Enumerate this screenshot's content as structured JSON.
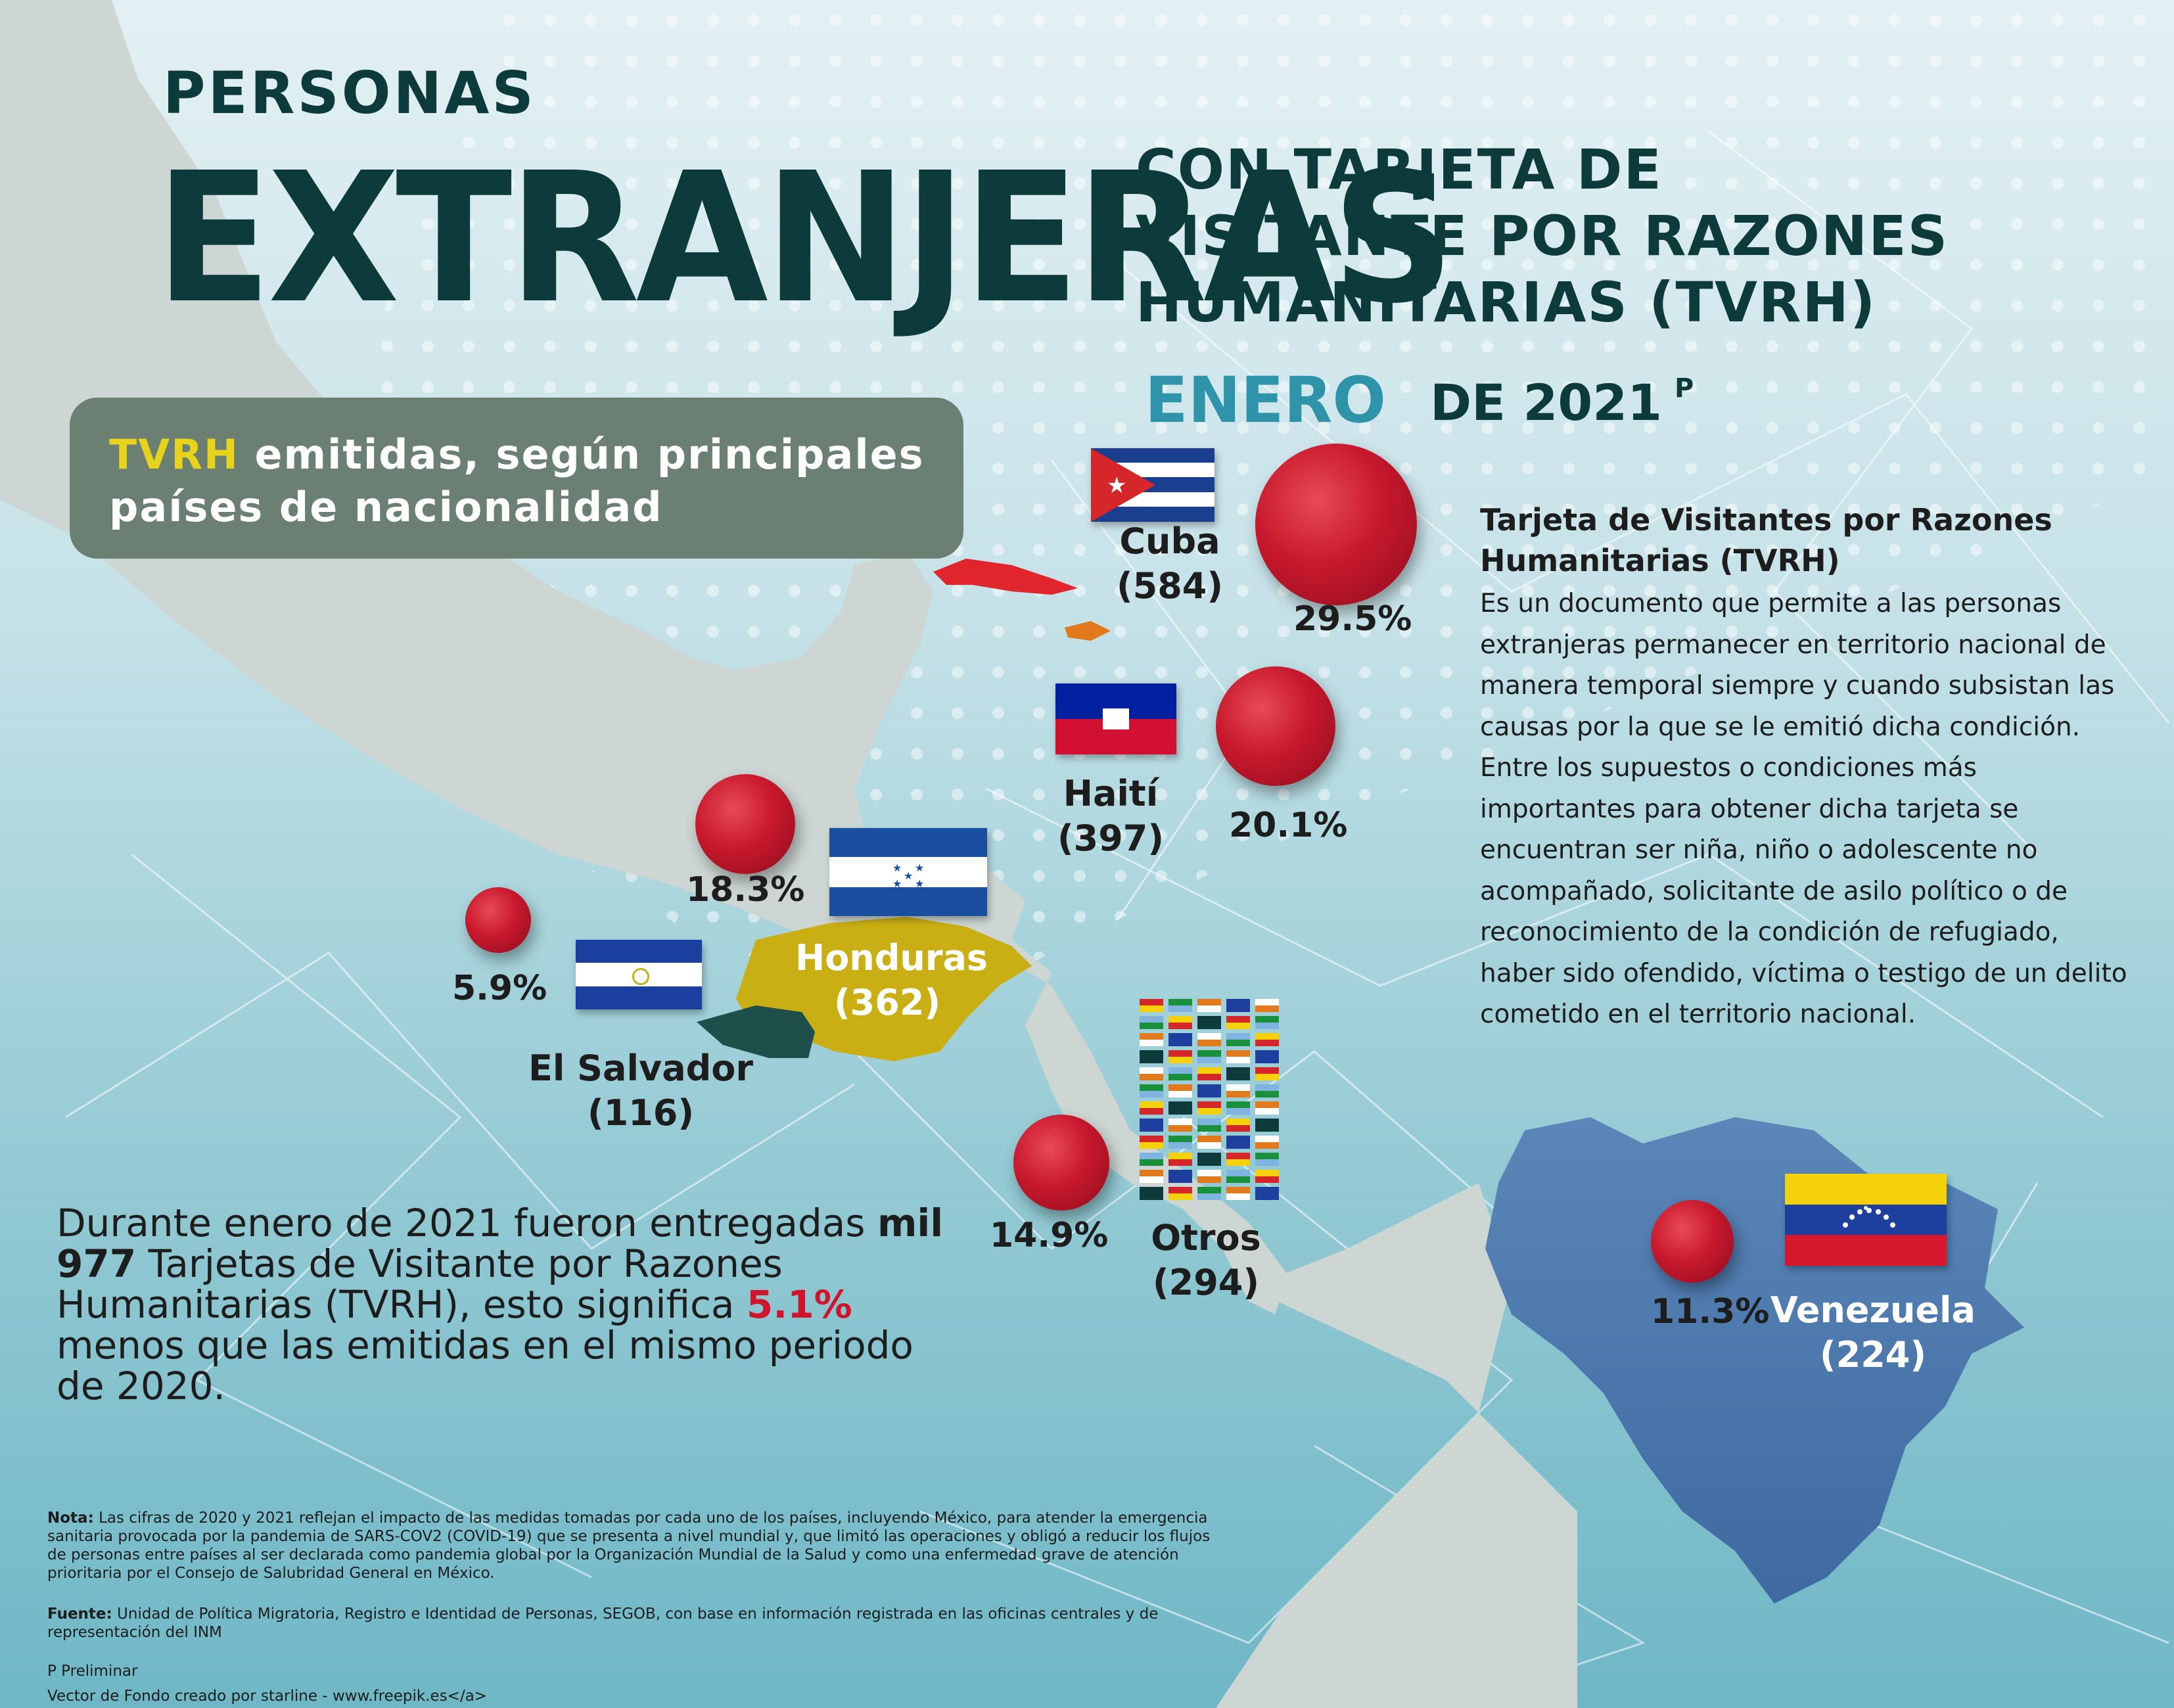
{
  "header": {
    "line1": "PERSONAS",
    "line2": "EXTRANJERAS",
    "line3a": "CON TARJETA DE",
    "line3b": "VISITANTE POR RAZONES",
    "line3c": "HUMANITARIAS (TVRH)",
    "month": "ENERO",
    "year": "DE 2021",
    "year_sup": "P"
  },
  "subtitle": {
    "highlight": "TVRH",
    "text": " emitidas, según principales países de nacionalidad"
  },
  "countries": [
    {
      "name": "Cuba",
      "count": "(584)",
      "pct": "29.5%",
      "share": 29.5
    },
    {
      "name": "Haití",
      "count": "(397)",
      "pct": "20.1%",
      "share": 20.1
    },
    {
      "name": "Honduras",
      "count": "(362)",
      "pct": "18.3%",
      "share": 18.3
    },
    {
      "name": "El Salvador",
      "count": "(116)",
      "pct": "5.9%",
      "share": 5.9
    },
    {
      "name": "Otros",
      "count": "(294)",
      "pct": "14.9%",
      "share": 14.9
    },
    {
      "name": "Venezuela",
      "count": "(224)",
      "pct": "11.3%",
      "share": 11.3
    }
  ],
  "definition": {
    "title": "Tarjeta de Visitantes por Razones Humanitarias (TVRH)",
    "body": "Es un documento que permite a las personas extranjeras permanecer en territorio nacional de manera temporal siempre y cuando subsistan las causas por la que se le emitió dicha condición. Entre los supuestos o condiciones más importantes para obtener dicha tarjeta se encuentran ser niña, niño o adolescente no acompañado, solicitante de asilo político o de reconocimiento de la condición de refugiado, haber sido ofendido, víctima o testigo de un delito cometido en el territorio nacional."
  },
  "summary": {
    "p1": "Durante enero de 2021 fueron entregadas ",
    "b1": "mil 977",
    "p2": "  Tarjetas de Visitante por Razones Humanitarias (TVRH), esto significa ",
    "b2": "5.1%",
    "p3": " menos que las emitidas en el mismo periodo de 2020."
  },
  "notes": {
    "nota_label": "Nota:",
    "nota": " Las cifras de 2020 y 2021 reflejan el impacto de las medidas tomadas por cada uno de los países, incluyendo México, para atender la emergencia sanitaria provocada por la pandemia de SARS-COV2 (COVID-19) que se presenta a nivel mundial y, que limitó las operaciones y obligó a reducir los flujos de personas entre países al ser declarada como pandemia global por la Organización Mundial de la Salud y como una enfermedad grave de atención prioritaria por el Consejo de Salubridad General en México.",
    "fuente_label": "Fuente:",
    "fuente": " Unidad de Política Migratoria, Registro e Identidad de Personas, SEGOB, con base en información registrada en las oficinas centrales y de representación del INM",
    "preliminar": "P Preliminar",
    "credit": "Vector de Fondo creado por starline - www.freepik.es</a>"
  },
  "colors": {
    "title": "#0d3a3a",
    "month": "#2f93a9",
    "highlight": "#e7d21c",
    "bubble": "#c8182d",
    "subtitle_box": "#6b7f73",
    "honduras": "#c9ae14",
    "salvador": "#1f4f4a",
    "venezuela": "#4d79ad",
    "cuba": "#e0262c",
    "land": "#cdd6d2"
  }
}
